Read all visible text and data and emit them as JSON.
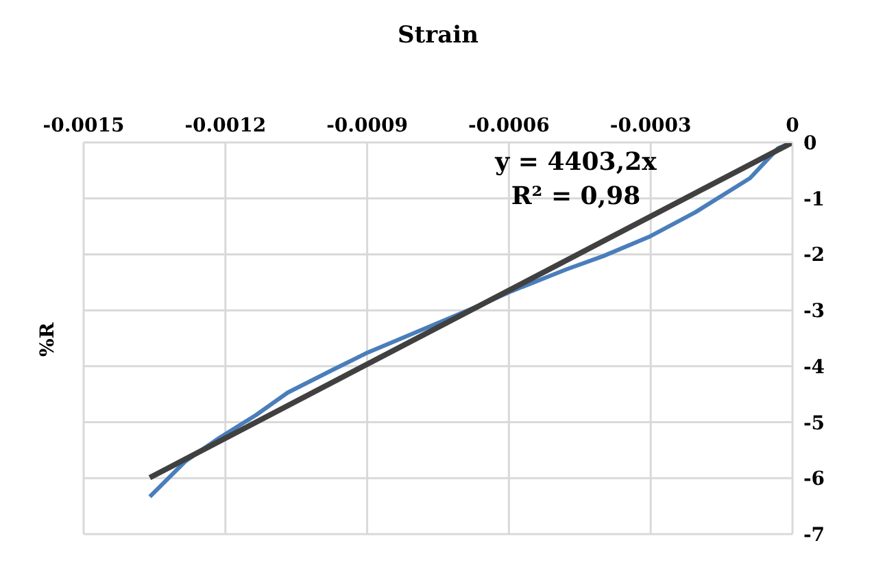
{
  "chart_data": {
    "type": "line",
    "xlabel": "Strain",
    "ylabel": "%R",
    "annotations": [
      "y = 4403,2x",
      "R² = 0,98"
    ],
    "xlim": [
      -0.0015,
      0
    ],
    "xticks": [
      -0.0015,
      -0.0012,
      -0.0009,
      -0.0006,
      -0.0003,
      0
    ],
    "ylim": [
      -7,
      0
    ],
    "yticks": [
      -7,
      -6,
      -5,
      -4,
      -3,
      -2,
      -1,
      0
    ],
    "grid": true,
    "marker": "none",
    "series": [
      {
        "color": "#4a7ebb",
        "x": [
          -0.00136,
          -0.001285,
          -0.001213,
          -0.001135,
          -0.001068,
          -0.000972,
          -0.000903,
          -0.000827,
          -0.000729,
          -0.000653,
          -0.000595,
          -0.000479,
          -0.0004,
          -0.000304,
          -0.000206,
          -9e-05,
          -3e-05,
          0
        ],
        "values": [
          -6.33,
          -5.7,
          -5.28,
          -4.87,
          -4.47,
          -4.06,
          -3.77,
          -3.5,
          -3.15,
          -2.88,
          -2.66,
          -2.27,
          -2.03,
          -1.69,
          -1.25,
          -0.64,
          -0.1,
          0
        ]
      },
      {
        "color": "#404040",
        "x": [
          -0.00136,
          0
        ],
        "values": [
          -5.99,
          0
        ]
      }
    ]
  }
}
